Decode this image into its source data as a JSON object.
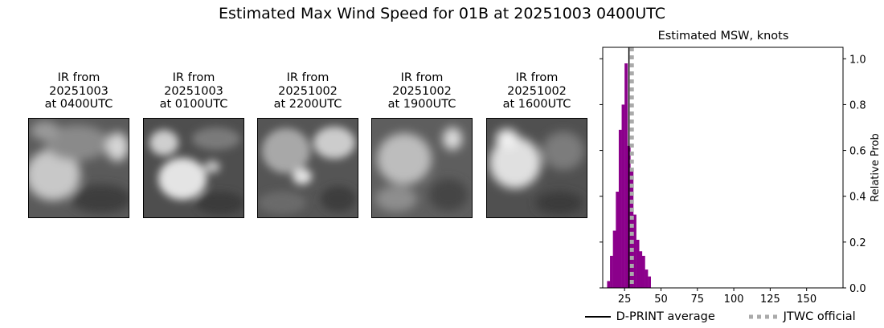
{
  "title": "Estimated Max Wind Speed for 01B at 20251003 0400UTC",
  "ir_panels": [
    {
      "line1": "IR from",
      "line2": "20251003",
      "line3": "at 0400UTC"
    },
    {
      "line1": "IR from",
      "line2": "20251003",
      "line3": "at 0100UTC"
    },
    {
      "line1": "IR from",
      "line2": "20251002",
      "line3": "at 2200UTC"
    },
    {
      "line1": "IR from",
      "line2": "20251002",
      "line3": "at 1900UTC"
    },
    {
      "line1": "IR from",
      "line2": "20251002",
      "line3": "at 1600UTC"
    }
  ],
  "chart_data": {
    "type": "bar",
    "title": "Estimated MSW, knots",
    "xlabel": "",
    "ylabel": "Relative Prob",
    "xlim": [
      10,
      175
    ],
    "ylim": [
      0,
      1.05
    ],
    "x_ticks": [
      25,
      50,
      75,
      100,
      125,
      150
    ],
    "y_ticks": [
      0.0,
      0.2,
      0.4,
      0.6,
      0.8,
      1.0
    ],
    "bin_width": 2,
    "bar_color": "#8b008b",
    "bins": [
      {
        "x": 14,
        "value": 0.03
      },
      {
        "x": 16,
        "value": 0.14
      },
      {
        "x": 18,
        "value": 0.25
      },
      {
        "x": 20,
        "value": 0.42
      },
      {
        "x": 22,
        "value": 0.69
      },
      {
        "x": 24,
        "value": 0.8
      },
      {
        "x": 26,
        "value": 0.98
      },
      {
        "x": 28,
        "value": 0.62
      },
      {
        "x": 30,
        "value": 0.51
      },
      {
        "x": 32,
        "value": 0.32
      },
      {
        "x": 34,
        "value": 0.21
      },
      {
        "x": 36,
        "value": 0.16
      },
      {
        "x": 38,
        "value": 0.14
      },
      {
        "x": 40,
        "value": 0.08
      },
      {
        "x": 42,
        "value": 0.05
      }
    ],
    "lines": [
      {
        "name": "D-PRINT average",
        "x": 28,
        "color": "#000000",
        "style": "solid"
      },
      {
        "name": "JTWC official",
        "x": 30,
        "color": "#aaaaaa",
        "style": "dotted"
      }
    ],
    "legend_position": "bottom"
  }
}
